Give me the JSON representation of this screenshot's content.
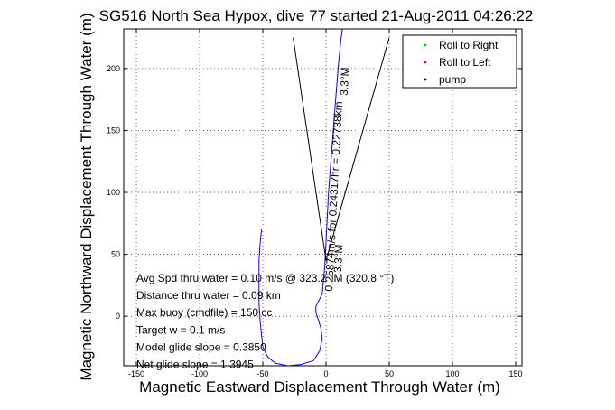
{
  "chart_data": {
    "type": "line",
    "title": "SG516 North Sea Hypox, dive 77 started 21-Aug-2011 04:26:22",
    "xlabel": "Magnetic Eastward Displacement Through Water (m)",
    "ylabel": "Magnetic Northward Displacement Through Water (m)",
    "xlim": [
      -160,
      155
    ],
    "ylim": [
      -40,
      232
    ],
    "xticks": [
      -150,
      -100,
      -50,
      0,
      50,
      100,
      150
    ],
    "yticks": [
      0,
      50,
      100,
      150,
      200
    ],
    "grid": true,
    "legend_position": "top-right",
    "legend": [
      {
        "label": "Roll to Right",
        "color": "#00cc00",
        "marker": "."
      },
      {
        "label": "Roll to Left",
        "color": "#ff0000",
        "marker": "."
      },
      {
        "label": "pump",
        "color": "#000000",
        "marker": "."
      }
    ],
    "series": [
      {
        "color": "#0000ff",
        "x": [
          -51,
          -52,
          -53,
          -53,
          -53,
          -52,
          -51,
          -50,
          -46,
          -40,
          -30,
          -20,
          -10,
          -5,
          -3,
          -4,
          -6,
          -8,
          -8,
          -6,
          -3,
          -1,
          0,
          2,
          5,
          8,
          10,
          12,
          13
        ],
        "y": [
          70,
          60,
          45,
          30,
          10,
          -5,
          -15,
          -25,
          -33,
          -38,
          -40,
          -39,
          -36,
          -28,
          -18,
          -10,
          -3,
          3,
          8,
          12,
          18,
          40,
          60,
          100,
          140,
          180,
          205,
          225,
          232
        ]
      },
      {
        "color": "#000000",
        "x": [
          -26,
          0,
          50
        ],
        "y": [
          225,
          45,
          225
        ]
      }
    ],
    "annotations": [
      {
        "text": "Avg Spd thru water =  0.10 m/s @ 323.2   °M (320.8 °T)",
        "x": -150,
        "y": 28
      },
      {
        "text": "Distance thru water =  0.09 km",
        "x": -150,
        "y": 14
      },
      {
        "text": "Max buoy (cmdfile) = 150 cc",
        "x": -150,
        "y": 0
      },
      {
        "text": "Target w = 0.1 m/s",
        "x": -150,
        "y": -14
      },
      {
        "text": "Model glide slope = 0.3850",
        "x": -150,
        "y": -28
      },
      {
        "text": "Net glide slope = 1.3945",
        "x": -150,
        "y": -42
      }
    ],
    "vector_labels": [
      {
        "text": "0.25874m/s for 0.24317hr = 0.22738km",
        "x": 5,
        "y": 20
      },
      {
        "text": "3.3°M",
        "x": 12,
        "y": 35
      },
      {
        "text": "3.3°M",
        "x": 17,
        "y": 178
      }
    ]
  }
}
